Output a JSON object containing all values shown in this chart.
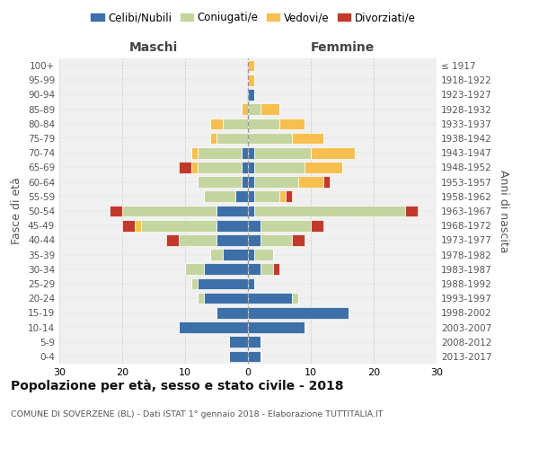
{
  "age_groups": [
    "0-4",
    "5-9",
    "10-14",
    "15-19",
    "20-24",
    "25-29",
    "30-34",
    "35-39",
    "40-44",
    "45-49",
    "50-54",
    "55-59",
    "60-64",
    "65-69",
    "70-74",
    "75-79",
    "80-84",
    "85-89",
    "90-94",
    "95-99",
    "100+"
  ],
  "birth_years": [
    "2013-2017",
    "2008-2012",
    "2003-2007",
    "1998-2002",
    "1993-1997",
    "1988-1992",
    "1983-1987",
    "1978-1982",
    "1973-1977",
    "1968-1972",
    "1963-1967",
    "1958-1962",
    "1953-1957",
    "1948-1952",
    "1943-1947",
    "1938-1942",
    "1933-1937",
    "1928-1932",
    "1923-1927",
    "1918-1922",
    "≤ 1917"
  ],
  "colors": {
    "celibi": "#3d6fa8",
    "coniugati": "#c5d5a0",
    "vedovi": "#f5c050",
    "divorziati": "#c0392b",
    "background": "#f0f0f0",
    "grid": "#cccccc",
    "dashed_line": "#999999"
  },
  "maschi": {
    "celibi": [
      3,
      3,
      11,
      5,
      7,
      8,
      7,
      4,
      5,
      5,
      5,
      2,
      1,
      1,
      1,
      0,
      0,
      0,
      0,
      0,
      0
    ],
    "coniugati": [
      0,
      0,
      0,
      0,
      1,
      1,
      3,
      2,
      6,
      12,
      15,
      5,
      7,
      7,
      7,
      5,
      4,
      0,
      0,
      0,
      0
    ],
    "vedovi": [
      0,
      0,
      0,
      0,
      0,
      0,
      0,
      0,
      0,
      1,
      0,
      0,
      0,
      1,
      1,
      1,
      2,
      1,
      0,
      0,
      0
    ],
    "divorziati": [
      0,
      0,
      0,
      0,
      0,
      0,
      0,
      0,
      2,
      2,
      2,
      0,
      0,
      2,
      0,
      0,
      0,
      0,
      0,
      0,
      0
    ]
  },
  "femmine": {
    "celibi": [
      2,
      2,
      9,
      16,
      7,
      1,
      2,
      1,
      2,
      2,
      1,
      1,
      1,
      1,
      1,
      0,
      0,
      0,
      1,
      0,
      0
    ],
    "coniugati": [
      0,
      0,
      0,
      0,
      1,
      0,
      2,
      3,
      5,
      8,
      24,
      4,
      7,
      8,
      9,
      7,
      5,
      2,
      0,
      0,
      0
    ],
    "vedovi": [
      0,
      0,
      0,
      0,
      0,
      0,
      0,
      0,
      0,
      0,
      0,
      1,
      4,
      6,
      7,
      5,
      4,
      3,
      0,
      1,
      1
    ],
    "divorziati": [
      0,
      0,
      0,
      0,
      0,
      0,
      1,
      0,
      2,
      2,
      2,
      1,
      1,
      0,
      0,
      0,
      0,
      0,
      0,
      0,
      0
    ]
  },
  "xlim": 30,
  "title": "Popolazione per età, sesso e stato civile - 2018",
  "subtitle": "COMUNE DI SOVERZENE (BL) - Dati ISTAT 1° gennaio 2018 - Elaborazione TUTTITALIA.IT",
  "xlabel_left": "Maschi",
  "xlabel_right": "Femmine",
  "ylabel_left": "Fasce di età",
  "ylabel_right": "Anni di nascita",
  "legend_labels": [
    "Celibi/Nubili",
    "Coniugati/e",
    "Vedovi/e",
    "Divorziati/e"
  ]
}
